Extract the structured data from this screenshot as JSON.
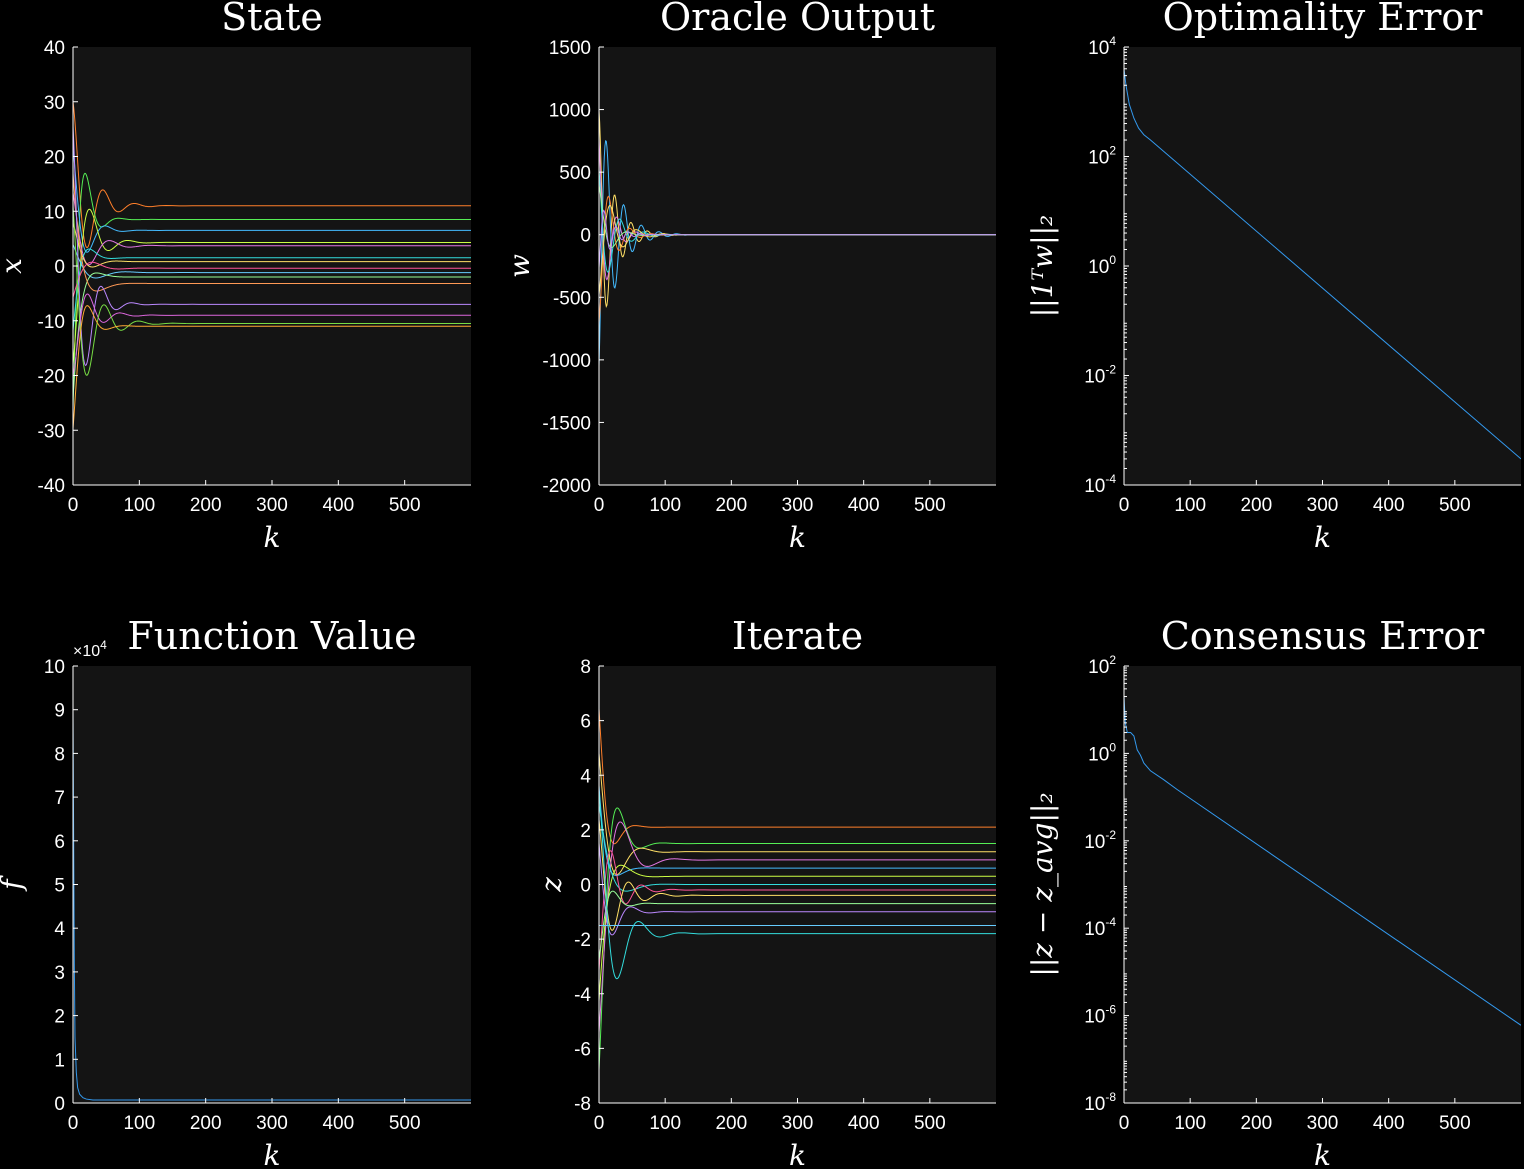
{
  "chart_data": [
    {
      "type": "line",
      "title": "State",
      "xlabel": "k",
      "ylabel": "x",
      "xlim": [
        0,
        600
      ],
      "ylim": [
        -40,
        40
      ],
      "xticks": [
        0,
        100,
        200,
        300,
        400,
        500
      ],
      "yticks": [
        -40,
        -30,
        -20,
        -10,
        0,
        10,
        20,
        30,
        40
      ],
      "series": [
        {
          "color": "#ff7f2a",
          "start": 30,
          "final": 11.0
        },
        {
          "color": "#55ee55",
          "start": -28,
          "final": 8.5
        },
        {
          "color": "#44bbff",
          "start": 22,
          "final": 6.5
        },
        {
          "color": "#ccff44",
          "start": -18,
          "final": 4.3
        },
        {
          "color": "#e377e3",
          "start": 14,
          "final": 3.7
        },
        {
          "color": "#33dddd",
          "start": -12,
          "final": 1.5
        },
        {
          "color": "#ffe066",
          "start": 8,
          "final": 0.8
        },
        {
          "color": "#ff5599",
          "start": -6,
          "final": -0.4
        },
        {
          "color": "#66ccff",
          "start": 4,
          "final": -1.2
        },
        {
          "color": "#99ff99",
          "start": -24,
          "final": -2.0
        },
        {
          "color": "#ff9955",
          "start": 18,
          "final": -3.2
        },
        {
          "color": "#bb88ff",
          "start": 26,
          "final": -7.0
        },
        {
          "color": "#dd66dd",
          "start": -20,
          "final": -9.0
        },
        {
          "color": "#77dd44",
          "start": 12,
          "final": -10.5
        },
        {
          "color": "#ffaa33",
          "start": -30,
          "final": -11.0
        }
      ]
    },
    {
      "type": "line",
      "title": "Oracle Output",
      "xlabel": "k",
      "ylabel": "w",
      "xlim": [
        0,
        600
      ],
      "ylim": [
        -2000,
        1500
      ],
      "xticks": [
        0,
        100,
        200,
        300,
        400,
        500
      ],
      "yticks": [
        -2000,
        -1500,
        -1000,
        -500,
        0,
        500,
        1000,
        1500
      ],
      "series": [
        {
          "color": "#ffe066",
          "start": 1000,
          "final": 0
        },
        {
          "color": "#44bbff",
          "start": -1200,
          "final": 0
        },
        {
          "color": "#e377e3",
          "start": 800,
          "final": 0
        },
        {
          "color": "#ff7f2a",
          "start": -700,
          "final": 0
        },
        {
          "color": "#33dddd",
          "start": 600,
          "final": 0
        },
        {
          "color": "#ffe066",
          "start": -500,
          "final": 0
        },
        {
          "color": "#99ff99",
          "start": 400,
          "final": 0
        },
        {
          "color": "#bb88ff",
          "start": -300,
          "final": 0
        }
      ]
    },
    {
      "type": "line",
      "title": "Optimality Error",
      "xlabel": "k",
      "ylabel": "||1ᵀw||₂",
      "yscale": "log",
      "xlim": [
        0,
        600
      ],
      "ylim": [
        0.0001,
        10000
      ],
      "xticks": [
        0,
        100,
        200,
        300,
        400,
        500
      ],
      "ytick_exponents": [
        -4,
        -2,
        0,
        2,
        4
      ],
      "series": [
        {
          "color": "#3399ee",
          "x": [
            0,
            3,
            8,
            15,
            22,
            30,
            40,
            600
          ],
          "y": [
            4000,
            2000,
            900,
            500,
            330,
            250,
            200,
            0.0003
          ]
        }
      ]
    },
    {
      "type": "line",
      "title": "Function Value",
      "xlabel": "k",
      "ylabel": "f",
      "xlim": [
        0,
        600
      ],
      "ylim": [
        0,
        10
      ],
      "y_multiplier_exponent": 4,
      "xticks": [
        0,
        100,
        200,
        300,
        400,
        500
      ],
      "yticks": [
        0,
        1,
        2,
        3,
        4,
        5,
        6,
        7,
        8,
        9,
        10
      ],
      "series": [
        {
          "color": "#3399ee",
          "x": [
            0,
            1,
            2,
            3,
            5,
            7,
            10,
            15,
            20,
            30,
            600
          ],
          "y": [
            9.0,
            6.0,
            3.2,
            1.5,
            0.7,
            0.35,
            0.2,
            0.12,
            0.09,
            0.07,
            0.07
          ]
        }
      ]
    },
    {
      "type": "line",
      "title": "Iterate",
      "xlabel": "k",
      "ylabel": "z",
      "xlim": [
        0,
        600
      ],
      "ylim": [
        -8,
        8
      ],
      "xticks": [
        0,
        100,
        200,
        300,
        400,
        500
      ],
      "yticks": [
        -8,
        -6,
        -4,
        -2,
        0,
        2,
        4,
        6,
        8
      ],
      "series": [
        {
          "color": "#ff7f2a",
          "start": 6.5,
          "final": 2.1
        },
        {
          "color": "#55ee55",
          "start": -6.8,
          "final": 1.5
        },
        {
          "color": "#ffe066",
          "start": 5.0,
          "final": 1.2
        },
        {
          "color": "#e377e3",
          "start": -5.5,
          "final": 0.9
        },
        {
          "color": "#44bbff",
          "start": 4.0,
          "final": 0.6
        },
        {
          "color": "#ccff44",
          "start": -4.5,
          "final": 0.3
        },
        {
          "color": "#33dddd",
          "start": 3.0,
          "final": 0.0
        },
        {
          "color": "#ff5599",
          "start": -3.5,
          "final": -0.2
        },
        {
          "color": "#ffe066",
          "start": 2.5,
          "final": -0.4
        },
        {
          "color": "#99ff99",
          "start": -2.8,
          "final": -0.7
        },
        {
          "color": "#bb88ff",
          "start": 1.8,
          "final": -1.0
        },
        {
          "color": "#66ccff",
          "start": -1.5,
          "final": -1.5
        },
        {
          "color": "#33dddd",
          "start": 3.5,
          "final": -1.8
        }
      ]
    },
    {
      "type": "line",
      "title": "Consensus Error",
      "xlabel": "k",
      "ylabel": "||z − z_avg||₂",
      "yscale": "log",
      "xlim": [
        0,
        600
      ],
      "ylim": [
        1e-08,
        100
      ],
      "xticks": [
        0,
        100,
        200,
        300,
        400,
        500
      ],
      "ytick_exponents": [
        -8,
        -6,
        -4,
        -2,
        0,
        2
      ],
      "series": [
        {
          "color": "#3399ee",
          "x": [
            0,
            2,
            5,
            10,
            15,
            20,
            25,
            30,
            40,
            60,
            80,
            600
          ],
          "y": [
            20,
            5,
            3,
            3,
            2.5,
            1.2,
            0.9,
            0.6,
            0.4,
            0.25,
            0.15,
            6e-07
          ]
        }
      ]
    }
  ]
}
